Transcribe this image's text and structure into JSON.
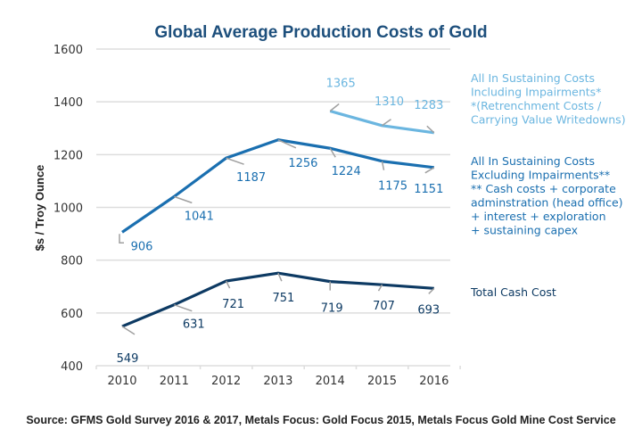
{
  "chart_data": {
    "type": "line",
    "title": "Global Average Production Costs of Gold",
    "xlabel": "",
    "ylabel": "$s / Troy Ounce",
    "x": [
      "2010",
      "2011",
      "2012",
      "2013",
      "2014",
      "2015",
      "2016"
    ],
    "ylim": [
      400,
      1600
    ],
    "yticks": [
      400,
      600,
      800,
      1000,
      1200,
      1400,
      1600
    ],
    "grid": true,
    "legend_placement": "right",
    "series": [
      {
        "name": "All In Sustaining Costs Including Impairments*",
        "legend_lines": [
          "All In Sustaining Costs",
          "Including Impairments*",
          "*(Retrenchment Costs /",
          "Carrying Value Writedowns)"
        ],
        "color": "#6bb6e0",
        "start_index": 4,
        "values": [
          null,
          null,
          null,
          null,
          1365,
          1310,
          1283
        ]
      },
      {
        "name": "All In Sustaining Costs Excluding Impairments**",
        "legend_lines": [
          "All In Sustaining Costs",
          "Excluding Impairments**",
          "** Cash costs + corporate",
          "adminstration (head office)",
          "+ interest + exploration",
          "+ sustaining capex"
        ],
        "color": "#1a6fb0",
        "start_index": 0,
        "values": [
          906,
          1041,
          1187,
          1256,
          1224,
          1175,
          1151
        ]
      },
      {
        "name": "Total Cash Cost",
        "legend_lines": [
          "Total Cash Cost"
        ],
        "color": "#0d3a63",
        "start_index": 0,
        "values": [
          549,
          631,
          721,
          751,
          719,
          707,
          693
        ]
      }
    ],
    "source": "Source: GFMS Gold Survey 2016 & 2017, Metals Focus: Gold Focus 2015, Metals Focus Gold Mine Cost Service"
  },
  "colors": {
    "title": "#1d4f7c",
    "grid": "#dddddd",
    "leader": "#a0a0a0"
  }
}
